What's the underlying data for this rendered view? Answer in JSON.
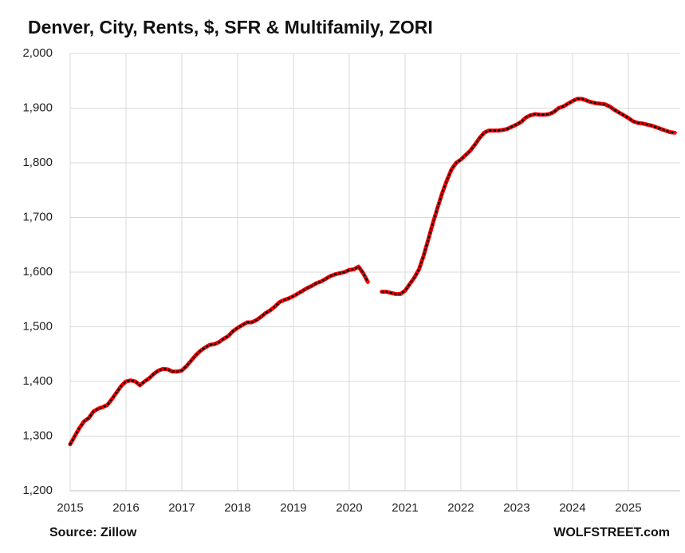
{
  "chart_data": {
    "type": "line",
    "title": "Denver, City, Rents, $, SFR & Multifamily, ZORI",
    "source": "Source: Zillow",
    "credit": "WOLFSTREET.com",
    "xlim": [
      2015,
      2025.93
    ],
    "xticks": [
      2015,
      2016,
      2017,
      2018,
      2019,
      2020,
      2021,
      2022,
      2023,
      2024,
      2025
    ],
    "ylim": [
      1200,
      2000
    ],
    "yticks": [
      {
        "value": 1200,
        "label": "1,200"
      },
      {
        "value": 1300,
        "label": "1,300"
      },
      {
        "value": 1400,
        "label": "1,400"
      },
      {
        "value": 1500,
        "label": "1,500"
      },
      {
        "value": 1600,
        "label": "1,600"
      },
      {
        "value": 1700,
        "label": "1,700"
      },
      {
        "value": 1800,
        "label": "1,800"
      },
      {
        "value": 1900,
        "label": "1,900"
      },
      {
        "value": 2000,
        "label": "2,000"
      }
    ],
    "grid": true,
    "x": [
      2015,
      2015.083,
      2015.167,
      2015.25,
      2015.333,
      2015.417,
      2015.5,
      2015.583,
      2015.667,
      2015.75,
      2015.833,
      2015.917,
      2016,
      2016.083,
      2016.167,
      2016.25,
      2016.333,
      2016.417,
      2016.5,
      2016.583,
      2016.667,
      2016.75,
      2016.833,
      2016.917,
      2017,
      2017.083,
      2017.167,
      2017.25,
      2017.333,
      2017.417,
      2017.5,
      2017.583,
      2017.667,
      2017.75,
      2017.833,
      2017.917,
      2018,
      2018.083,
      2018.167,
      2018.25,
      2018.333,
      2018.417,
      2018.5,
      2018.583,
      2018.667,
      2018.75,
      2018.833,
      2018.917,
      2019,
      2019.083,
      2019.167,
      2019.25,
      2019.333,
      2019.417,
      2019.5,
      2019.583,
      2019.667,
      2019.75,
      2019.833,
      2019.917,
      2020,
      2020.083,
      2020.167,
      2020.25,
      2020.333,
      2020.417,
      2020.5,
      2020.583,
      2020.667,
      2020.75,
      2020.833,
      2020.917,
      2021,
      2021.083,
      2021.167,
      2021.25,
      2021.333,
      2021.417,
      2021.5,
      2021.583,
      2021.667,
      2021.75,
      2021.833,
      2021.917,
      2022,
      2022.083,
      2022.167,
      2022.25,
      2022.333,
      2022.417,
      2022.5,
      2022.583,
      2022.667,
      2022.75,
      2022.833,
      2022.917,
      2023,
      2023.083,
      2023.167,
      2023.25,
      2023.333,
      2023.417,
      2023.5,
      2023.583,
      2023.667,
      2023.75,
      2023.833,
      2023.917,
      2024,
      2024.083,
      2024.167,
      2024.25,
      2024.333,
      2024.417,
      2024.5,
      2024.583,
      2024.667,
      2024.75,
      2024.833,
      2024.917,
      2025,
      2025.083,
      2025.167,
      2025.25,
      2025.333,
      2025.417,
      2025.5,
      2025.583,
      2025.667,
      2025.75,
      2025.833
    ],
    "series": [
      {
        "name": "Denver rents",
        "color": "#ff0000",
        "values": [
          1285,
          1300,
          1315,
          1327,
          1333,
          1345,
          1350,
          1353,
          1357,
          1368,
          1380,
          1392,
          1400,
          1402,
          1400,
          1393,
          1400,
          1406,
          1414,
          1420,
          1423,
          1422,
          1418,
          1418,
          1420,
          1428,
          1438,
          1448,
          1456,
          1462,
          1467,
          1468,
          1472,
          1478,
          1483,
          1492,
          1498,
          1503,
          1508,
          1508,
          1512,
          1518,
          1525,
          1530,
          1537,
          1545,
          1549,
          1552,
          1556,
          1561,
          1566,
          1571,
          1575,
          1580,
          1583,
          1588,
          1593,
          1596,
          1598,
          1600,
          1604,
          1605,
          1610,
          1598,
          1582,
          null,
          null,
          1564,
          1564,
          1562,
          1560,
          1560,
          1566,
          1578,
          1590,
          1605,
          1630,
          1660,
          1690,
          1718,
          1745,
          1768,
          1788,
          1800,
          1806,
          1814,
          1822,
          1833,
          1845,
          1855,
          1859,
          1859,
          1859,
          1860,
          1862,
          1866,
          1870,
          1875,
          1883,
          1887,
          1889,
          1888,
          1888,
          1889,
          1893,
          1900,
          1903,
          1908,
          1913,
          1917,
          1917,
          1914,
          1911,
          1909,
          1908,
          1907,
          1903,
          1897,
          1892,
          1887,
          1882,
          1876,
          1873,
          1872,
          1870,
          1868,
          1865,
          1862,
          1859,
          1856,
          1855
        ]
      }
    ]
  }
}
